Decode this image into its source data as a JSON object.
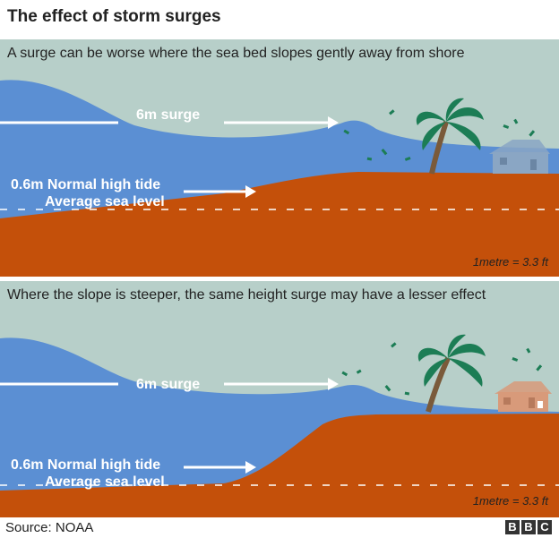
{
  "title": "The effect of storm surges",
  "panel1": {
    "heading": "A surge can be worse where the sea bed slopes gently away from shore",
    "surge_label": "6m surge",
    "tide_label": "0.6m Normal high tide",
    "sea_label": "Average sea level",
    "scale_note": "1metre = 3.3 ft"
  },
  "panel2": {
    "heading": "Where the slope is steeper, the same height surge may have a lesser effect",
    "surge_label": "6m surge",
    "tide_label": "0.6m Normal high tide",
    "sea_label": "Average sea level",
    "scale_note": "1metre = 3.3 ft"
  },
  "source": "Source: NOAA",
  "logo_letters": [
    "B",
    "B",
    "C"
  ],
  "colors": {
    "sky": "#b7cfc9",
    "sea": "#5b8fd3",
    "seabed": "#c4500a",
    "palm_leaf": "#1c7d55",
    "palm_trunk": "#7a5a3a",
    "house_body": "#8aa6c4",
    "house_roof": "#d89a7a"
  },
  "icons": [
    "palm-tree-icon",
    "house-icon",
    "arrow-icon",
    "flying-debris-icon"
  ]
}
